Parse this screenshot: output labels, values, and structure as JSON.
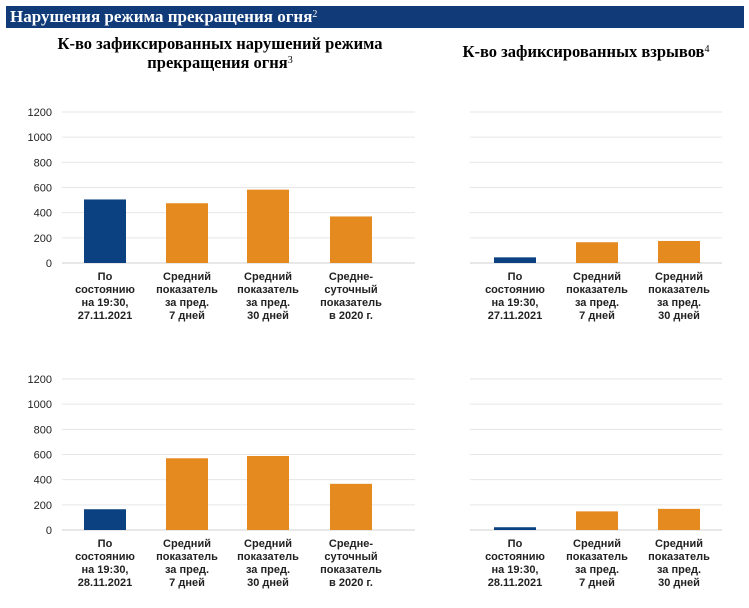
{
  "header": {
    "title": "Нарушения режима прекращения огня",
    "title_sup": "2"
  },
  "left_panel": {
    "title": "К-во зафиксированных нарушений режима прекращения огня",
    "title_sup": "3"
  },
  "right_panel": {
    "title": "К-во зафиксированных взрывов",
    "title_sup": "4"
  },
  "colors": {
    "current": "#0b4181",
    "average": "#e58a1f",
    "header_bg": "#103a78",
    "grid": "#e6e6e6"
  },
  "chart_data": [
    {
      "type": "bar",
      "panel": "left",
      "row": 1,
      "categories": [
        [
          "По",
          "состоянию",
          "на 19:30,",
          "27.11.2021"
        ],
        [
          "Средний",
          "показатель",
          "за пред.",
          "7 дней"
        ],
        [
          "Средний",
          "показатель",
          "за пред.",
          "30 дней"
        ],
        [
          "Средне-",
          "суточный",
          "показатель",
          "в 2020 г."
        ]
      ],
      "values": [
        505,
        475,
        583,
        370
      ],
      "ylim": [
        0,
        1200
      ],
      "yticks": [
        0,
        200,
        400,
        600,
        800,
        1000,
        1200
      ],
      "grid": true
    },
    {
      "type": "bar",
      "panel": "right",
      "row": 1,
      "categories": [
        [
          "По",
          "состоянию",
          "на 19:30,",
          "27.11.2021"
        ],
        [
          "Средний",
          "показатель",
          "за пред.",
          "7 дней"
        ],
        [
          "Средний",
          "показатель",
          "за пред.",
          "30 дней"
        ]
      ],
      "values": [
        45,
        165,
        175
      ],
      "ylim": [
        0,
        1200
      ],
      "grid": true
    },
    {
      "type": "bar",
      "panel": "left",
      "row": 2,
      "categories": [
        [
          "По",
          "состоянию",
          "на 19:30,",
          "28.11.2021"
        ],
        [
          "Средний",
          "показатель",
          "за пред.",
          "7 дней"
        ],
        [
          "Средний",
          "показатель",
          "за пред.",
          "30 дней"
        ],
        [
          "Средне-",
          "суточный",
          "показатель",
          "в 2020 г."
        ]
      ],
      "values": [
        165,
        570,
        588,
        367
      ],
      "ylim": [
        0,
        1200
      ],
      "yticks": [
        0,
        200,
        400,
        600,
        800,
        1000,
        1200
      ],
      "grid": true
    },
    {
      "type": "bar",
      "panel": "right",
      "row": 2,
      "categories": [
        [
          "По",
          "состоянию",
          "на 19:30,",
          "28.11.2021"
        ],
        [
          "Средний",
          "показатель",
          "за пред.",
          "7 дней"
        ],
        [
          "Средний",
          "показатель",
          "за пред.",
          "30 дней"
        ]
      ],
      "values": [
        22,
        148,
        168
      ],
      "ylim": [
        0,
        1200
      ],
      "grid": true
    }
  ]
}
